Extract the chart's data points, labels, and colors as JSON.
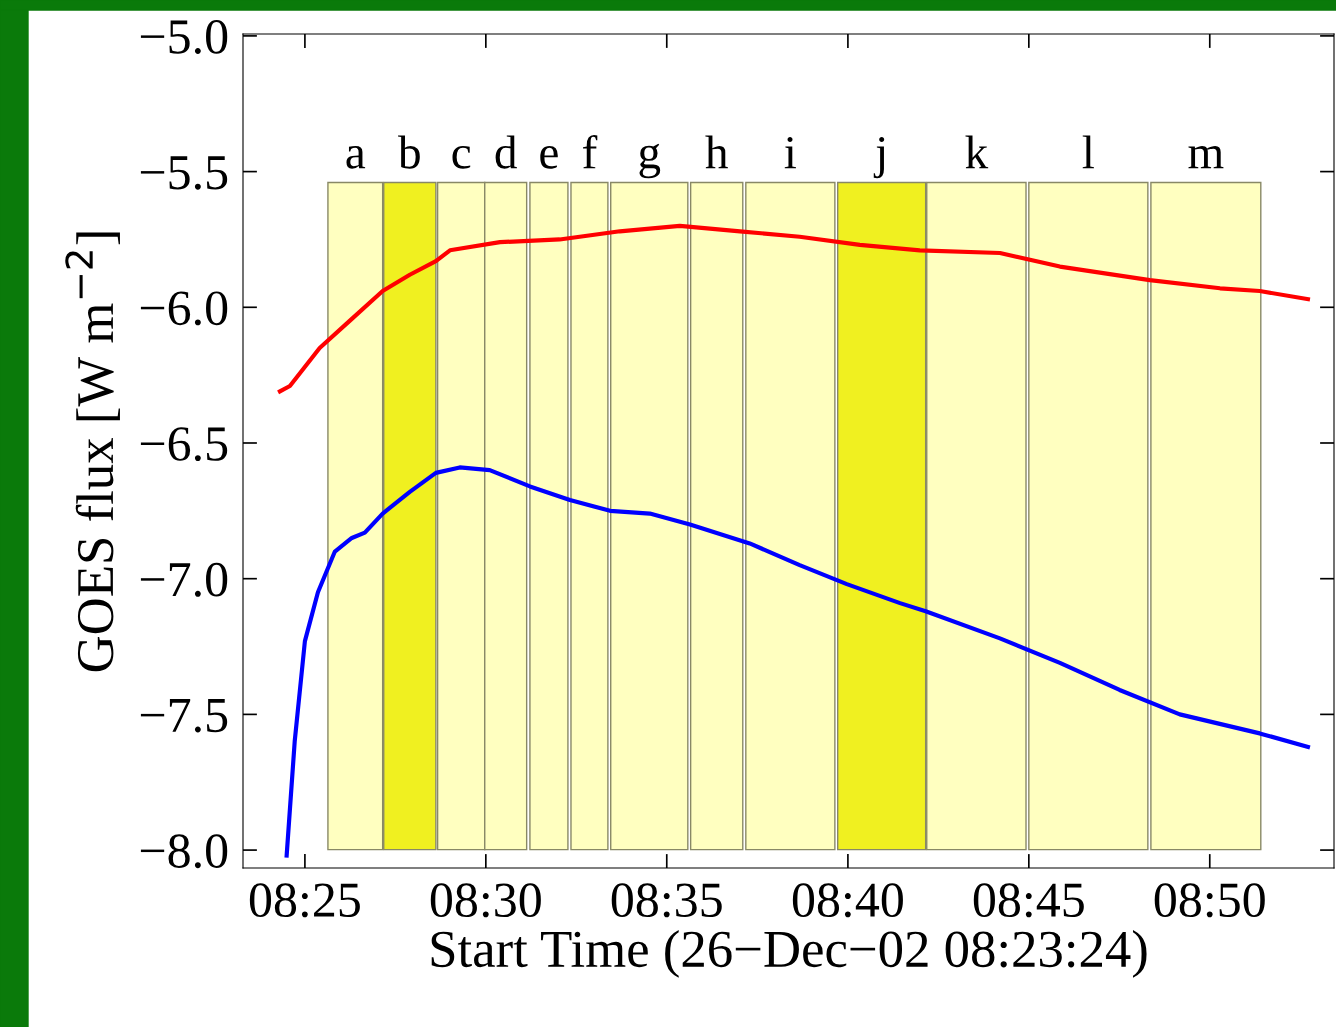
{
  "chart_data": {
    "type": "line",
    "xlabel": "Start Time (26−Dec−02 08:23:24)",
    "ylabel": "GOES flux [W m$^{−2}$]",
    "xlim": [
      8.3882,
      8.8905
    ],
    "ylim": [
      -8.066,
      -4.993
    ],
    "xticks": [
      {
        "value": 8.4167,
        "label": "08:25"
      },
      {
        "value": 8.5,
        "label": "08:30"
      },
      {
        "value": 8.5833,
        "label": "08:35"
      },
      {
        "value": 8.6667,
        "label": "08:40"
      },
      {
        "value": 8.75,
        "label": "08:45"
      },
      {
        "value": 8.8333,
        "label": "08:50"
      }
    ],
    "yticks": [
      {
        "value": -8.0,
        "label": "−8.0"
      },
      {
        "value": -7.5,
        "label": "−7.5"
      },
      {
        "value": -7.0,
        "label": "−7.0"
      },
      {
        "value": -6.5,
        "label": "−6.5"
      },
      {
        "value": -6.0,
        "label": "−6.0"
      },
      {
        "value": -5.5,
        "label": "−5.5"
      },
      {
        "value": -5.0,
        "label": "−5.0"
      }
    ],
    "grid": false,
    "series": [
      {
        "color": "#ff0000",
        "x": [
          8.4052,
          8.4098,
          8.4235,
          8.4373,
          8.4525,
          8.465,
          8.477,
          8.4835,
          8.5065,
          8.534,
          8.5617,
          8.5893,
          8.617,
          8.6445,
          8.6722,
          8.6998,
          8.7367,
          8.7643,
          8.8057,
          8.838,
          8.8563,
          8.8785
        ],
        "values": [
          -6.31,
          -6.29,
          -6.15,
          -6.05,
          -5.94,
          -5.88,
          -5.83,
          -5.79,
          -5.76,
          -5.75,
          -5.72,
          -5.7,
          -5.72,
          -5.74,
          -5.77,
          -5.79,
          -5.8,
          -5.85,
          -5.9,
          -5.93,
          -5.94,
          -5.97
        ]
      },
      {
        "color": "#0000ff",
        "x": [
          8.4083,
          8.412,
          8.4167,
          8.4227,
          8.4305,
          8.4383,
          8.4443,
          8.4525,
          8.465,
          8.477,
          8.488,
          8.5018,
          8.5203,
          8.5387,
          8.5572,
          8.5755,
          8.594,
          8.6215,
          8.6445,
          8.6662,
          8.6907,
          8.7025,
          8.7367,
          8.7643,
          8.7918,
          8.8195,
          8.8563,
          8.8785
        ],
        "values": [
          -8.02,
          -7.6,
          -7.23,
          -7.05,
          -6.9,
          -6.85,
          -6.83,
          -6.76,
          -6.68,
          -6.61,
          -6.59,
          -6.6,
          -6.66,
          -6.71,
          -6.75,
          -6.76,
          -6.8,
          -6.87,
          -6.95,
          -7.02,
          -7.09,
          -7.12,
          -7.22,
          -7.31,
          -7.41,
          -7.5,
          -7.57,
          -7.62
        ]
      }
    ],
    "bands": [
      {
        "axis": "x",
        "from": 8.4273,
        "to": 8.4525,
        "label": "a",
        "color": "#ffffc0"
      },
      {
        "axis": "x",
        "from": 8.453,
        "to": 8.477,
        "label": "b",
        "color": "#f0f020"
      },
      {
        "axis": "x",
        "from": 8.4778,
        "to": 8.4995,
        "label": "c",
        "color": "#ffffc0"
      },
      {
        "axis": "x",
        "from": 8.4995,
        "to": 8.5188,
        "label": "d",
        "color": "#ffffc0"
      },
      {
        "axis": "x",
        "from": 8.5203,
        "to": 8.5378,
        "label": "e",
        "color": "#ffffc0"
      },
      {
        "axis": "x",
        "from": 8.5392,
        "to": 8.5562,
        "label": "f",
        "color": "#ffffc0"
      },
      {
        "axis": "x",
        "from": 8.5575,
        "to": 8.593,
        "label": "g",
        "color": "#ffffc0"
      },
      {
        "axis": "x",
        "from": 8.5943,
        "to": 8.6183,
        "label": "h",
        "color": "#ffffc0"
      },
      {
        "axis": "x",
        "from": 8.6197,
        "to": 8.6607,
        "label": "i",
        "color": "#ffffc0"
      },
      {
        "axis": "x",
        "from": 8.662,
        "to": 8.7025,
        "label": "j",
        "color": "#f0f020"
      },
      {
        "axis": "x",
        "from": 8.703,
        "to": 8.7487,
        "label": "k",
        "color": "#ffffc0"
      },
      {
        "axis": "x",
        "from": 8.75,
        "to": 8.8048,
        "label": "l",
        "color": "#ffffc0"
      },
      {
        "axis": "x",
        "from": 8.8062,
        "to": 8.8568,
        "label": "m",
        "color": "#ffffc0"
      }
    ]
  }
}
